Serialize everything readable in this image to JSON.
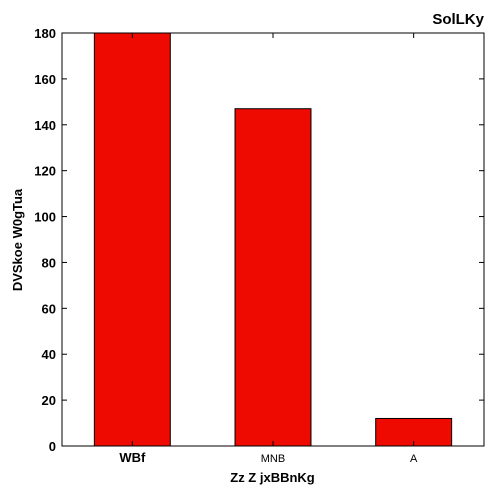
{
  "chart_data": {
    "type": "bar",
    "title": "SolLKy",
    "xlabel": "Zz Z jxBBnKg",
    "ylabel": "DVSkoe  W0gTua",
    "categories": [
      "WBf",
      "MNB",
      "A"
    ],
    "values": [
      180,
      147,
      12
    ],
    "ylim": [
      0,
      180
    ],
    "yticks": [
      0,
      20,
      40,
      60,
      80,
      100,
      120,
      140,
      160,
      180
    ],
    "grid": false,
    "legend": "none",
    "bar_color": "#ee0a00",
    "bar_edge_color": "#000000"
  }
}
